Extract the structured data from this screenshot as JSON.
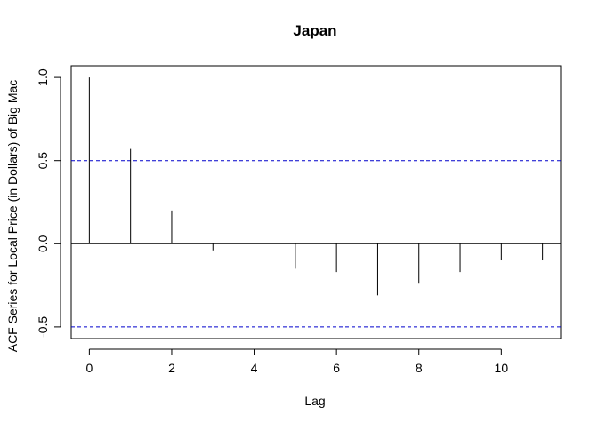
{
  "chart_data": {
    "type": "bar",
    "title": "Japan",
    "xlabel": "Lag",
    "ylabel": "ACF Series for Local Price (in Dollars) of Big Mac",
    "x": [
      0,
      1,
      2,
      3,
      4,
      5,
      6,
      7,
      8,
      9,
      10,
      11
    ],
    "values": [
      1.0,
      0.57,
      0.2,
      -0.04,
      0.005,
      -0.15,
      -0.17,
      -0.31,
      -0.24,
      -0.17,
      -0.1,
      -0.1
    ],
    "confidence_bounds": [
      0.5,
      -0.5
    ],
    "confidence_color": "#0000cc",
    "xlim": [
      -0.44,
      11.44
    ],
    "ylim": [
      -0.57,
      1.07
    ],
    "x_ticks": [
      "0",
      "2",
      "4",
      "6",
      "8",
      "10"
    ],
    "y_ticks": [
      "-0.5",
      "0.0",
      "0.5",
      "1.0"
    ],
    "grid": false,
    "legend": "none"
  }
}
